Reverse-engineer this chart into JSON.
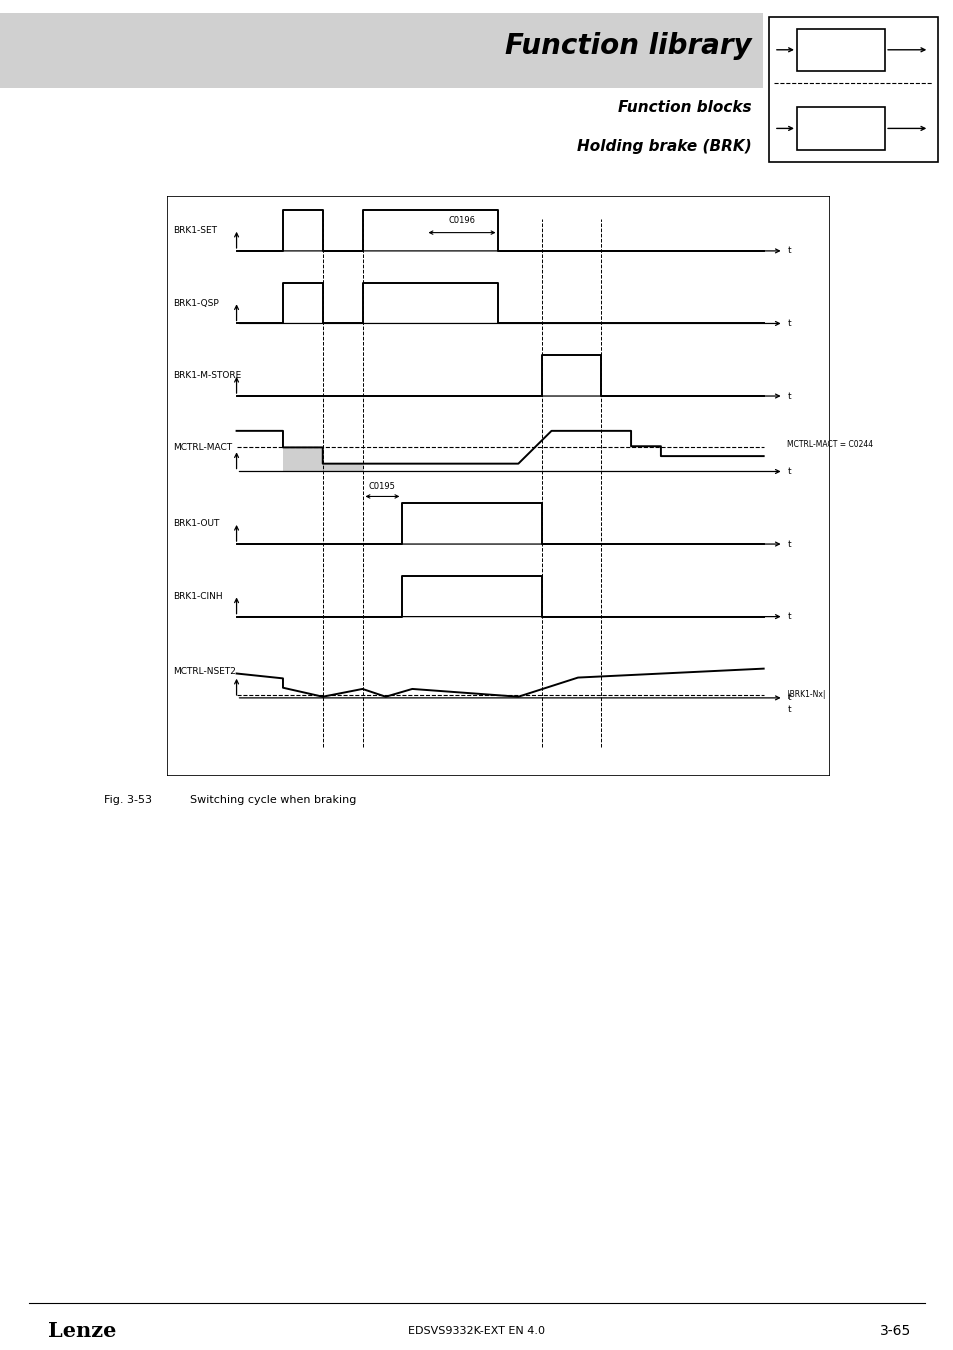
{
  "title": "Function library",
  "subtitle1": "Function blocks",
  "subtitle2": "Holding brake (BRK)",
  "fig_caption": "Fig. 3-53",
  "fig_caption_text": "Switching cycle when braking",
  "footer_left": "Lenze",
  "footer_center": "EDSVS9332K-EXT EN 4.0",
  "footer_right": "3-65",
  "background_color": "#ffffff",
  "header_bg_color": "#d0d0d0",
  "page_width": 9.54,
  "page_height": 13.5
}
